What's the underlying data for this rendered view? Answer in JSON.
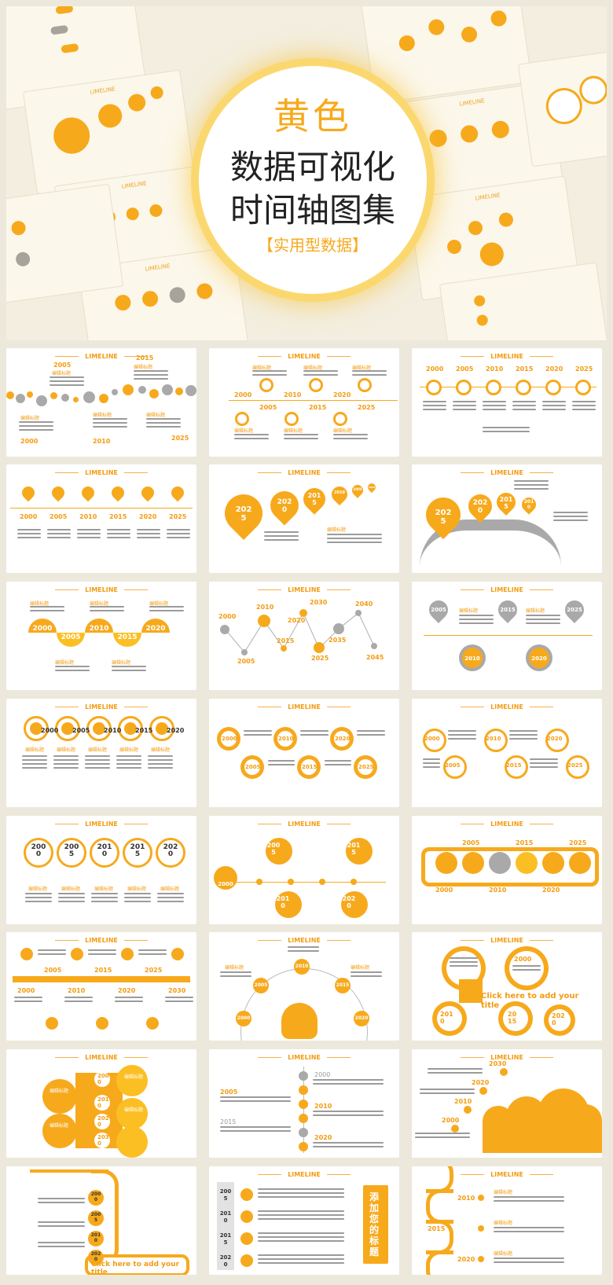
{
  "hero": {
    "title": "黄色",
    "line2": "数据可视化",
    "line3": "时间轴图集",
    "tag": "【实用型数据】",
    "tile_label": "LIMELINE"
  },
  "slide_title": "LIMELINE",
  "heading": "编辑标题",
  "cta": "Click here to add your title",
  "vertical_title": "添加您的标题",
  "slides": {
    "s1": {
      "years": [
        "2005",
        "2015",
        "2000",
        "2010",
        "2025"
      ]
    },
    "s2": {
      "years": [
        "2000",
        "2010",
        "2020",
        "2005",
        "2015",
        "2025"
      ]
    },
    "s3": {
      "years": [
        "2000",
        "2005",
        "2010",
        "2015",
        "2020",
        "2025"
      ]
    },
    "s4": {
      "years": [
        "2000",
        "2005",
        "2010",
        "2015",
        "2020",
        "2025"
      ]
    },
    "s5": {
      "years": [
        "202\n5",
        "202\n0",
        "201\n5",
        "2010",
        "2005",
        "2000"
      ]
    },
    "s6": {
      "years": [
        "202\n5",
        "202\n0",
        "201\n5",
        "201\n0"
      ]
    },
    "s7": {
      "years": [
        "2000",
        "2005",
        "2010",
        "2015",
        "2020"
      ]
    },
    "s8": {
      "years": [
        "2000",
        "2005",
        "2010",
        "2015",
        "2020",
        "2025",
        "2030",
        "2035",
        "2040",
        "2045"
      ]
    },
    "s9": {
      "years": [
        "2005",
        "2015",
        "2025",
        "2010",
        "2020"
      ]
    },
    "s10": {
      "years": [
        "2000",
        "2005",
        "2010",
        "2015",
        "2020"
      ]
    },
    "s11": {
      "years": [
        "2000",
        "2005",
        "2010",
        "2015",
        "2020",
        "2025"
      ]
    },
    "s12": {
      "years": [
        "2000",
        "2005",
        "2010",
        "2015",
        "2020",
        "2025"
      ]
    },
    "s13": {
      "years": [
        "200\n0",
        "200\n5",
        "201\n0",
        "201\n5",
        "202\n0"
      ]
    },
    "s14": {
      "years": [
        "2000",
        "200\n5",
        "201\n5",
        "201\n0",
        "202\n0"
      ]
    },
    "s15": {
      "years": [
        "2005",
        "2015",
        "2025",
        "2000",
        "2010",
        "2020"
      ]
    },
    "s16": {
      "years": [
        "2005",
        "2015",
        "2025",
        "2000",
        "2010",
        "2020",
        "2030"
      ]
    },
    "s17": {
      "years": [
        "2010",
        "2005",
        "2015",
        "2000",
        "2020"
      ]
    },
    "s18": {
      "years": [
        "2000",
        "201\n0",
        "20\n15",
        "202\n0"
      ]
    },
    "s19": {
      "years": [
        "200\n0",
        "201\n0",
        "202\n0",
        "203\n0"
      ]
    },
    "s20": {
      "years": [
        "2000",
        "2005",
        "2010",
        "2015",
        "2020"
      ]
    },
    "s21": {
      "years": [
        "2030",
        "2020",
        "2010",
        "2000"
      ]
    },
    "s22": {
      "years": [
        "200\n0",
        "200\n5",
        "201\n0",
        "202\n0"
      ]
    },
    "s23": {
      "years": [
        "200\n5",
        "201\n0",
        "201\n5",
        "202\n0"
      ]
    },
    "s24": {
      "years": [
        "2010",
        "2015",
        "2020"
      ]
    }
  },
  "colors": {
    "accent": "#f7a91c",
    "grey": "#a9a9a9",
    "bg": "#ece8dc"
  }
}
